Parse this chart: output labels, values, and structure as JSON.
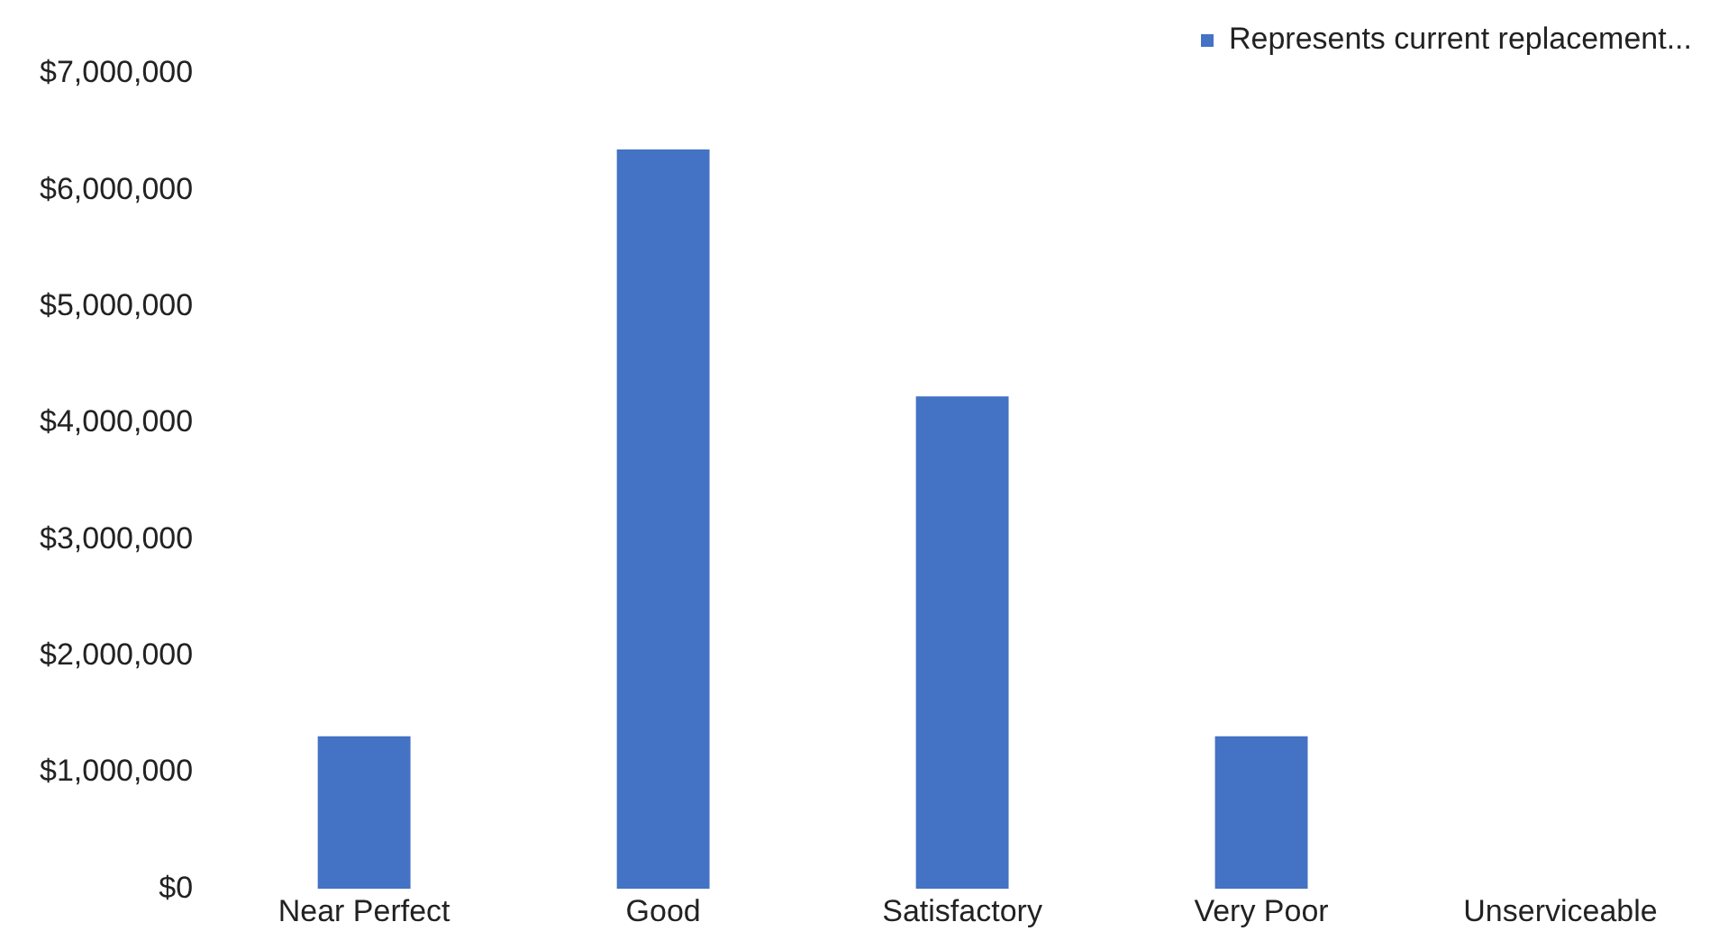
{
  "chart_data": {
    "type": "bar",
    "categories": [
      "Near Perfect",
      "Good",
      "Satisfactory",
      "Very Poor",
      "Unserviceable"
    ],
    "series": [
      {
        "name": "Represents current replacement...",
        "color": "#4472c4",
        "values": [
          1310000,
          6350000,
          4230000,
          1310000,
          0
        ]
      }
    ],
    "ylim": [
      0,
      7000000
    ],
    "yticks": [
      {
        "value": 0,
        "label": "$0"
      },
      {
        "value": 1000000,
        "label": "$1,000,000"
      },
      {
        "value": 2000000,
        "label": "$2,000,000"
      },
      {
        "value": 3000000,
        "label": "$3,000,000"
      },
      {
        "value": 4000000,
        "label": "$4,000,000"
      },
      {
        "value": 5000000,
        "label": "$5,000,000"
      },
      {
        "value": 6000000,
        "label": "$6,000,000"
      },
      {
        "value": 7000000,
        "label": "$7,000,000"
      }
    ],
    "grid": false,
    "legend": "top right"
  }
}
